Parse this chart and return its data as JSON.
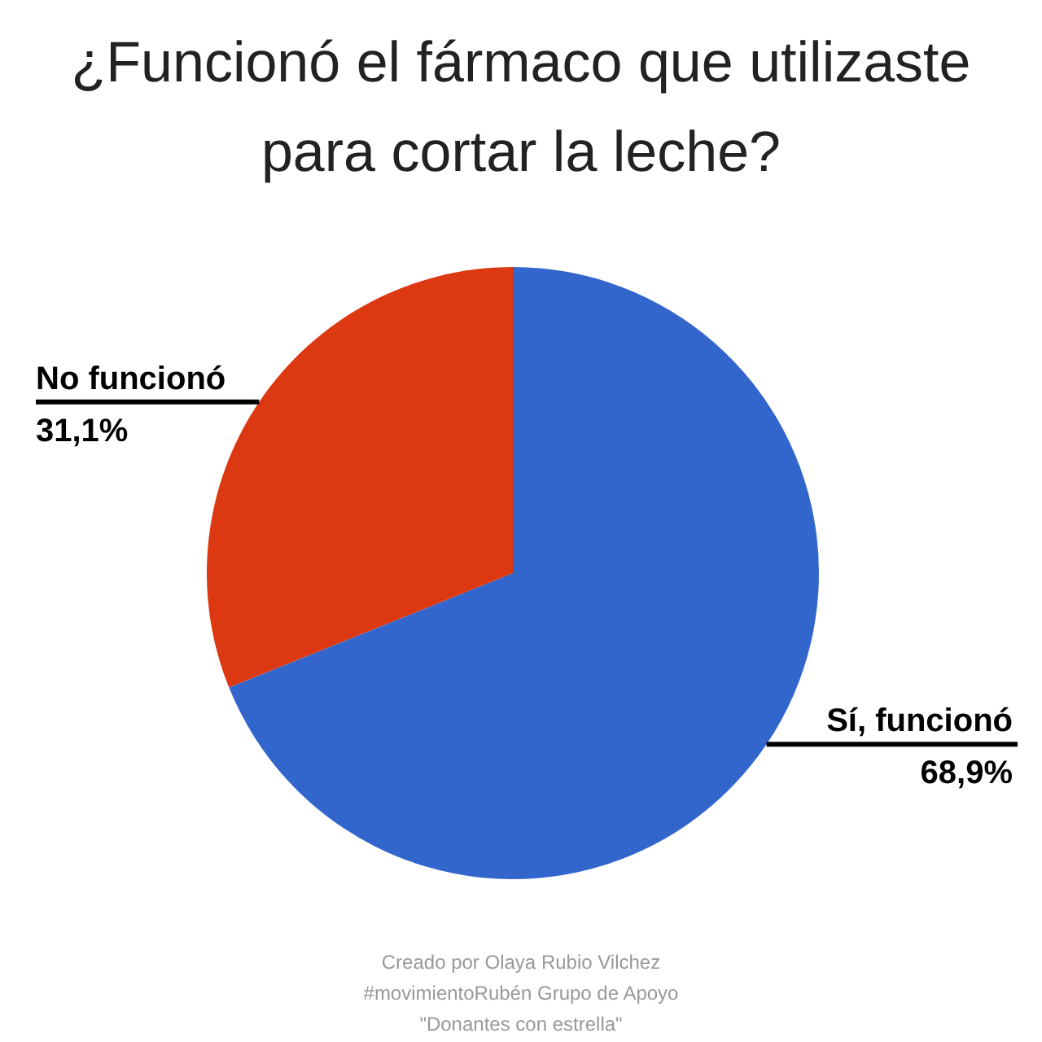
{
  "chart_data": {
    "type": "pie",
    "title": "¿Funcionó el fármaco que utilizaste para cortar la leche?",
    "categories": [
      "Sí, funcionó",
      "No funcionó"
    ],
    "values": [
      68.9,
      31.1
    ],
    "value_labels": [
      "68,9%",
      "31,1%"
    ],
    "colors": [
      "#3366cc",
      "#dc3912"
    ],
    "annotations": [
      "Creado por Olaya Rubio Vilchez",
      "#movimientoRubén Grupo de Apoyo",
      "\"Donantes con estrella\""
    ]
  }
}
